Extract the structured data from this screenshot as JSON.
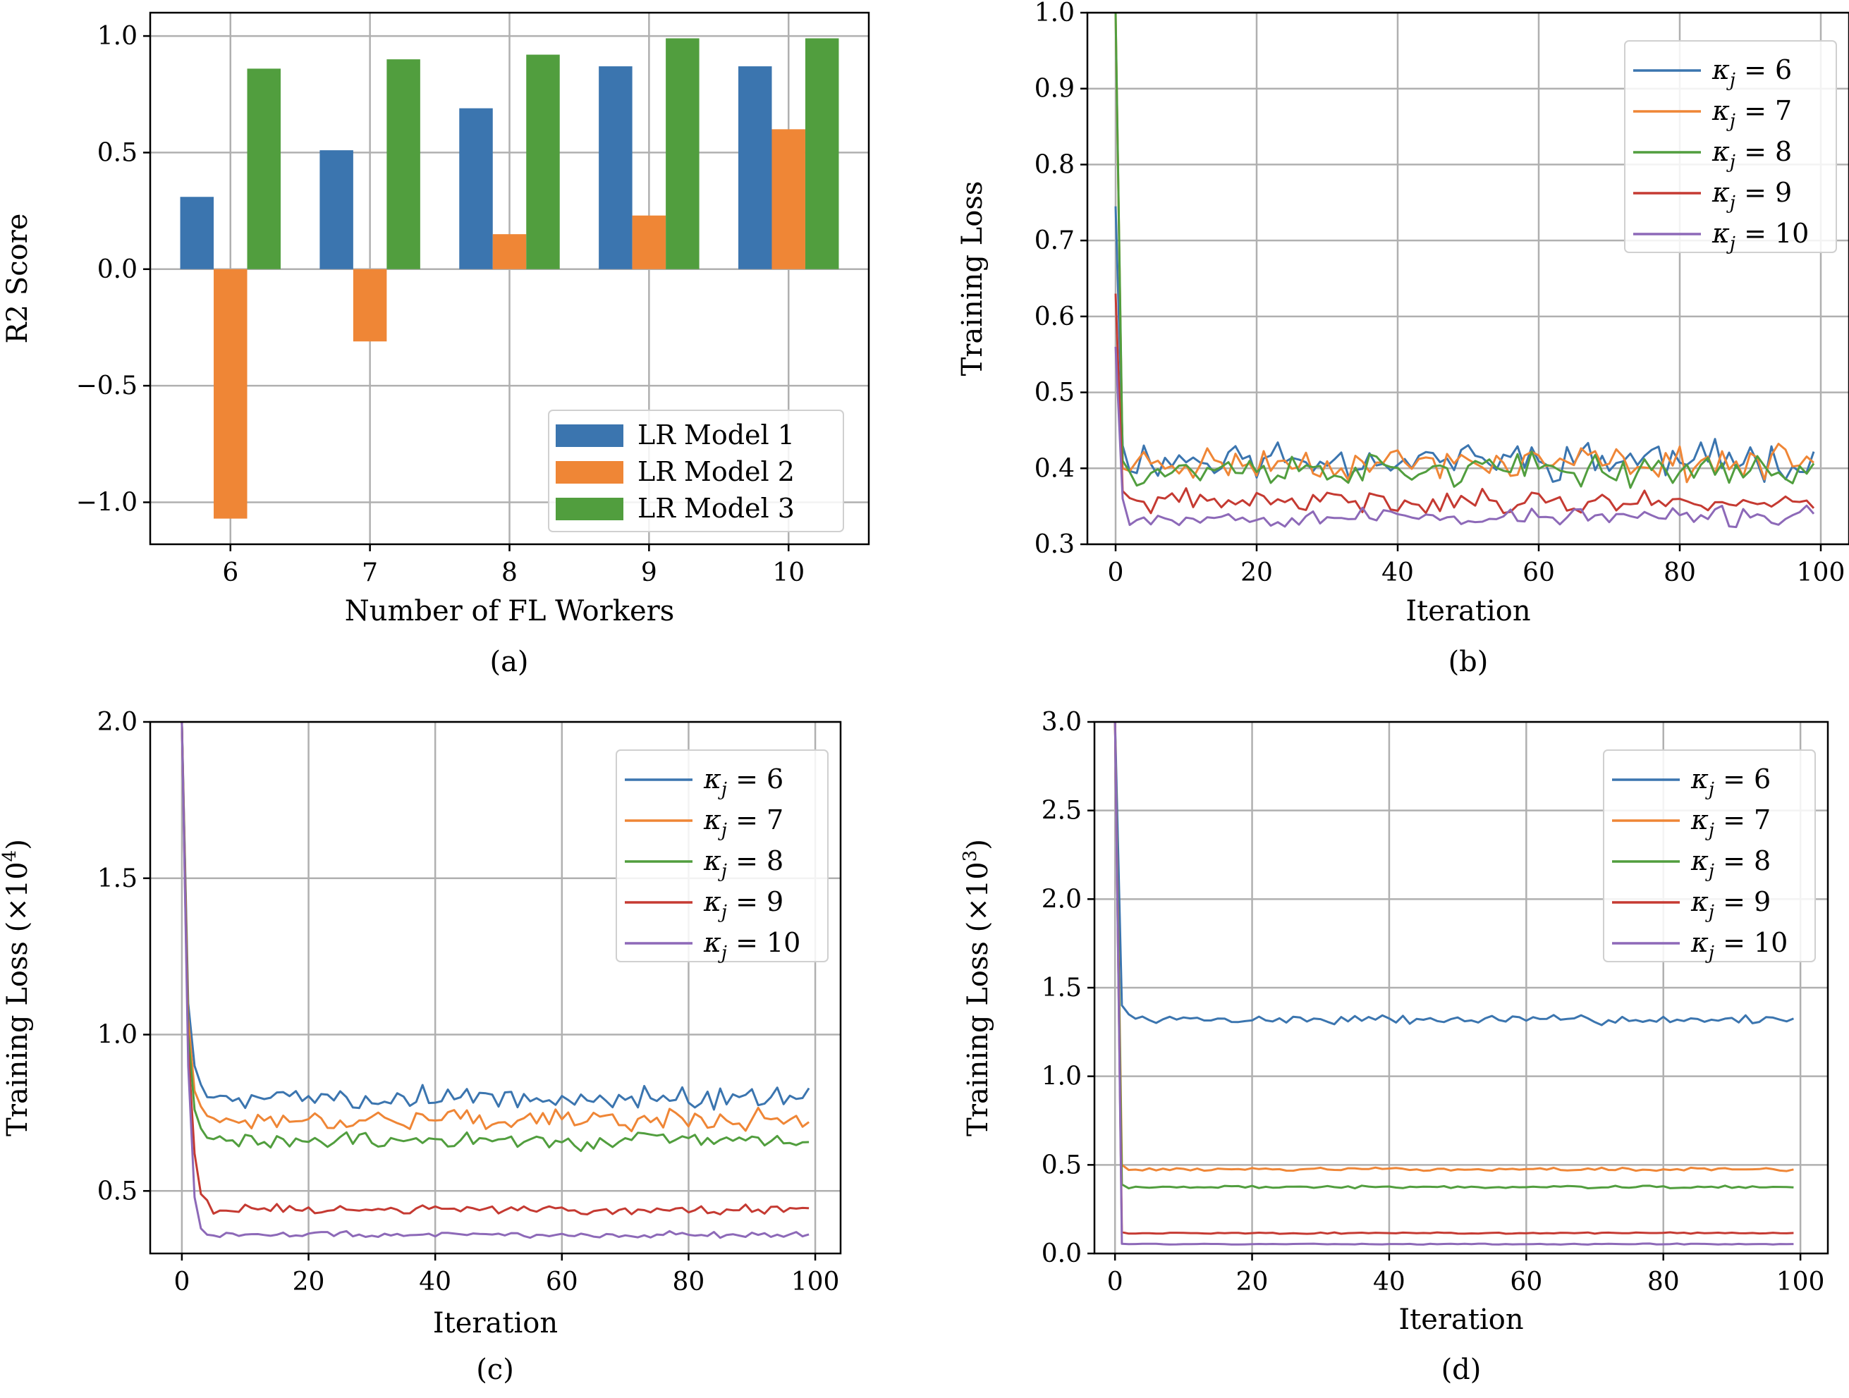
{
  "chart_data": [
    {
      "type": "bar",
      "panel_label": "(a)",
      "categories": [
        "6",
        "7",
        "8",
        "9",
        "10"
      ],
      "series": [
        {
          "name": "LR Model 1",
          "color": "#3b75af",
          "values": [
            0.31,
            0.51,
            0.69,
            0.87,
            0.87
          ]
        },
        {
          "name": "LR Model 2",
          "color": "#ef8636",
          "values": [
            -1.07,
            -0.31,
            0.15,
            0.23,
            0.6
          ]
        },
        {
          "name": "LR Model 3",
          "color": "#519e3e",
          "values": [
            0.86,
            0.9,
            0.92,
            0.99,
            0.99
          ]
        }
      ],
      "xlabel": "Number of FL Workers",
      "ylabel": "R2 Score",
      "ylim": [
        -1.18,
        1.1
      ],
      "yticks": [
        -1.0,
        -0.5,
        0.0,
        0.5,
        1.0
      ],
      "ytick_labels": [
        "−1.0",
        "−0.5",
        "0.0",
        "0.5",
        "1.0"
      ],
      "grid": true,
      "legend": "lower-right"
    },
    {
      "type": "line",
      "panel_label": "(b)",
      "xlabel": "Iteration",
      "ylabel": "Training Loss",
      "ylabel_sup": "",
      "ylabel_suffix": "",
      "xlim": [
        -4,
        104
      ],
      "ylim": [
        0.3,
        1.0
      ],
      "xticks": [
        0,
        20,
        40,
        60,
        80,
        100
      ],
      "xtick_labels": [
        "0",
        "20",
        "40",
        "60",
        "80",
        "100"
      ],
      "yticks": [
        0.3,
        0.4,
        0.5,
        0.6,
        0.7,
        0.8,
        0.9,
        1.0
      ],
      "ytick_labels": [
        "0.3",
        "0.4",
        "0.5",
        "0.6",
        "0.7",
        "0.8",
        "0.9",
        "1.0"
      ],
      "grid": true,
      "legend": "upper-right",
      "n_points": 100,
      "series": [
        {
          "name": "κ",
          "sub": "j",
          "eq": "= 6",
          "color": "#3b75af",
          "start": [
            0.745,
            0.43
          ],
          "base": 0.412,
          "noise": 0.02,
          "seed": 11
        },
        {
          "name": "κ",
          "sub": "j",
          "eq": "= 7",
          "color": "#ef8636",
          "start": [
            1.0,
            0.4
          ],
          "base": 0.407,
          "noise": 0.017,
          "seed": 23
        },
        {
          "name": "κ",
          "sub": "j",
          "eq": "= 8",
          "color": "#519e3e",
          "start": [
            1.0,
            0.41
          ],
          "base": 0.398,
          "noise": 0.016,
          "seed": 37
        },
        {
          "name": "κ",
          "sub": "j",
          "eq": "= 9",
          "color": "#c53a32",
          "start": [
            0.63,
            0.37
          ],
          "base": 0.356,
          "noise": 0.012,
          "seed": 41
        },
        {
          "name": "κ",
          "sub": "j",
          "eq": "= 10",
          "color": "#8d69b8",
          "start": [
            0.56,
            0.36
          ],
          "base": 0.336,
          "noise": 0.01,
          "seed": 53
        }
      ]
    },
    {
      "type": "line",
      "panel_label": "(c)",
      "xlabel": "Iteration",
      "ylabel": "Training Loss (×10",
      "ylabel_sup": "4",
      "ylabel_suffix": ")",
      "xlim": [
        -5,
        104
      ],
      "ylim": [
        0.3,
        2.0
      ],
      "xticks": [
        0,
        20,
        40,
        60,
        80,
        100
      ],
      "xtick_labels": [
        "0",
        "20",
        "40",
        "60",
        "80",
        "100"
      ],
      "yticks": [
        0.5,
        1.0,
        1.5,
        2.0
      ],
      "ytick_labels": [
        "0.5",
        "1.0",
        "1.5",
        "2.0"
      ],
      "grid": true,
      "legend": "upper-right",
      "n_points": 100,
      "series": [
        {
          "name": "κ",
          "sub": "j",
          "eq": "= 6",
          "color": "#3b75af",
          "start": [
            2.0,
            1.1,
            0.9,
            0.84,
            0.8
          ],
          "base": 0.8,
          "noise": 0.028,
          "seed": 5
        },
        {
          "name": "κ",
          "sub": "j",
          "eq": "= 7",
          "color": "#ef8636",
          "start": [
            2.0,
            1.05,
            0.82,
            0.77,
            0.74
          ],
          "base": 0.73,
          "noise": 0.026,
          "seed": 17
        },
        {
          "name": "κ",
          "sub": "j",
          "eq": "= 8",
          "color": "#519e3e",
          "start": [
            2.0,
            1.0,
            0.76,
            0.7,
            0.67
          ],
          "base": 0.66,
          "noise": 0.022,
          "seed": 29
        },
        {
          "name": "κ",
          "sub": "j",
          "eq": "= 9",
          "color": "#c53a32",
          "start": [
            2.0,
            0.95,
            0.62,
            0.49,
            0.47
          ],
          "base": 0.44,
          "noise": 0.012,
          "seed": 31
        },
        {
          "name": "κ",
          "sub": "j",
          "eq": "= 10",
          "color": "#8d69b8",
          "start": [
            2.0,
            0.9,
            0.48,
            0.38,
            0.36
          ],
          "base": 0.36,
          "noise": 0.008,
          "seed": 47
        }
      ]
    },
    {
      "type": "line",
      "panel_label": "(d)",
      "xlabel": "Iteration",
      "ylabel": "Training Loss (×10",
      "ylabel_sup": "3",
      "ylabel_suffix": ")",
      "xlim": [
        -3,
        104
      ],
      "ylim": [
        0.0,
        3.0
      ],
      "xticks": [
        0,
        20,
        40,
        60,
        80,
        100
      ],
      "xtick_labels": [
        "0",
        "20",
        "40",
        "60",
        "80",
        "100"
      ],
      "yticks": [
        0.0,
        0.5,
        1.0,
        1.5,
        2.0,
        2.5,
        3.0
      ],
      "ytick_labels": [
        "0.0",
        "0.5",
        "1.0",
        "1.5",
        "2.0",
        "2.5",
        "3.0"
      ],
      "grid": true,
      "legend": "upper-right",
      "n_points": 100,
      "series": [
        {
          "name": "κ",
          "sub": "j",
          "eq": "= 6",
          "color": "#3b75af",
          "start": [
            3.0,
            1.4,
            1.35
          ],
          "base": 1.32,
          "noise": 0.02,
          "seed": 7
        },
        {
          "name": "κ",
          "sub": "j",
          "eq": "= 7",
          "color": "#ef8636",
          "start": [
            3.0,
            0.5
          ],
          "base": 0.475,
          "noise": 0.007,
          "seed": 13
        },
        {
          "name": "κ",
          "sub": "j",
          "eq": "= 8",
          "color": "#519e3e",
          "start": [
            3.0,
            0.39
          ],
          "base": 0.375,
          "noise": 0.006,
          "seed": 19
        },
        {
          "name": "κ",
          "sub": "j",
          "eq": "= 9",
          "color": "#c53a32",
          "start": [
            3.0,
            0.12
          ],
          "base": 0.115,
          "noise": 0.003,
          "seed": 43
        },
        {
          "name": "κ",
          "sub": "j",
          "eq": "= 10",
          "color": "#8d69b8",
          "start": [
            3.0,
            0.055
          ],
          "base": 0.053,
          "noise": 0.002,
          "seed": 59
        }
      ]
    }
  ]
}
